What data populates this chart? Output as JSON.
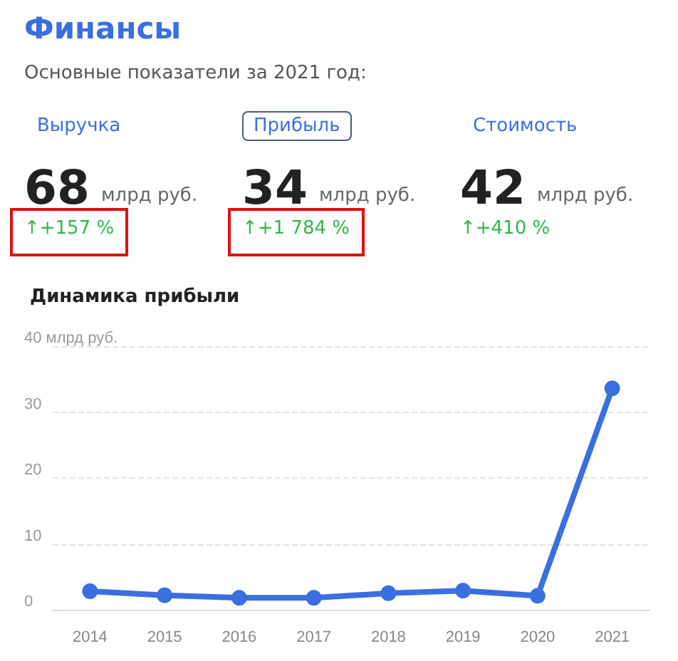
{
  "chart_data": [
    {
      "type": "other",
      "title": "Финансы",
      "subtitle": "Основные показатели за 2021 год:",
      "annotations": [
        "Выручка",
        "68",
        "млрд руб.",
        "↑+157 %",
        "Прибыль",
        "34",
        "млрд руб.",
        "↑+1 784 %",
        "Стоимость",
        "42",
        "млрд руб.",
        "↑+410 %"
      ]
    },
    {
      "type": "line",
      "title": "Динамика прибыли",
      "categories": [
        "2014",
        "2015",
        "2016",
        "2017",
        "2018",
        "2019",
        "2020",
        "2021"
      ],
      "series": [
        {
          "color": "#3b6fe0",
          "values": [
            2.8,
            2.2,
            1.8,
            1.8,
            2.5,
            2.9,
            2.1,
            33.6
          ]
        }
      ],
      "ylim": [
        0,
        40
      ],
      "yticks": [
        0,
        10,
        20,
        30,
        {
          "value": 40,
          "label": "40 млрд руб."
        }
      ],
      "grid": "y",
      "marker": "circle",
      "line_style": "solid"
    }
  ]
}
